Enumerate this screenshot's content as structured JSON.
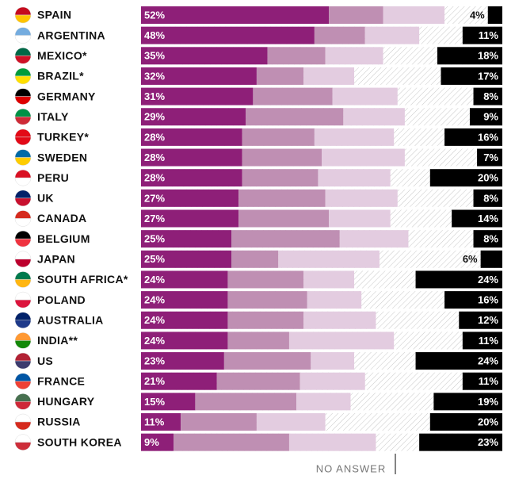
{
  "chart_data": {
    "type": "stacked-bar",
    "annotation": "NO ANSWER",
    "categories": [
      "SPAIN",
      "ARGENTINA",
      "MEXICO*",
      "BRAZIL*",
      "GERMANY",
      "ITALY",
      "TURKEY*",
      "SWEDEN",
      "PERU",
      "UK",
      "CANADA",
      "BELGIUM",
      "JAPAN",
      "SOUTH AFRICA*",
      "POLAND",
      "AUSTRALIA",
      "INDIA**",
      "US",
      "FRANCE",
      "HUNGARY",
      "RUSSIA",
      "SOUTH KOREA"
    ],
    "series": [
      {
        "color": "#8e1f78",
        "values": [
          52,
          48,
          35,
          32,
          31,
          29,
          28,
          28,
          28,
          27,
          27,
          25,
          25,
          24,
          24,
          24,
          24,
          23,
          21,
          15,
          11,
          9
        ],
        "value_labels": [
          "52%",
          "48%",
          "35%",
          "32%",
          "31%",
          "29%",
          "28%",
          "28%",
          "28%",
          "27%",
          "27%",
          "25%",
          "25%",
          "24%",
          "24%",
          "24%",
          "24%",
          "23%",
          "21%",
          "15%",
          "11%",
          "9%"
        ]
      },
      {
        "color": "#bf8fb3",
        "values": [
          15,
          14,
          16,
          13,
          22,
          27,
          20,
          22,
          21,
          24,
          25,
          30,
          13,
          21,
          22,
          21,
          17,
          24,
          23,
          28,
          21,
          32
        ]
      },
      {
        "color": "#e3cce0",
        "values": [
          17,
          15,
          16,
          14,
          18,
          17,
          22,
          23,
          20,
          20,
          17,
          19,
          28,
          14,
          15,
          20,
          29,
          12,
          18,
          15,
          19,
          24
        ]
      },
      {
        "color": "#000000",
        "values": [
          4,
          11,
          18,
          17,
          8,
          9,
          16,
          7,
          20,
          8,
          14,
          8,
          6,
          24,
          16,
          12,
          11,
          24,
          11,
          19,
          20,
          23
        ],
        "value_labels": [
          "4%",
          "11%",
          "18%",
          "17%",
          "8%",
          "9%",
          "16%",
          "7%",
          "20%",
          "8%",
          "14%",
          "8%",
          "6%",
          "24%",
          "16%",
          "12%",
          "11%",
          "24%",
          "11%",
          "19%",
          "20%",
          "23%"
        ]
      }
    ]
  }
}
